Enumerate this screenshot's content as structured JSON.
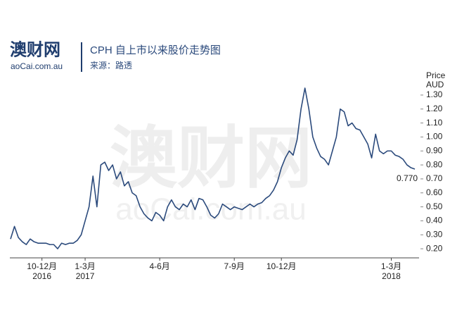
{
  "logo": {
    "name": "澳财网",
    "site": "aoCai.com.au"
  },
  "header": {
    "title": "CPH 自上市以来股价走势图",
    "source": "来源：路透"
  },
  "chart_data": {
    "type": "line",
    "watermark": {
      "name": "澳财网",
      "site": "aoCai.com.au"
    },
    "y_axis_label": [
      "Price",
      "AUD"
    ],
    "series": [
      {
        "name": "CPH",
        "color": "#2b4a7c",
        "values": [
          0.27,
          0.36,
          0.28,
          0.25,
          0.23,
          0.27,
          0.25,
          0.24,
          0.24,
          0.24,
          0.23,
          0.23,
          0.2,
          0.24,
          0.23,
          0.24,
          0.24,
          0.26,
          0.3,
          0.4,
          0.5,
          0.72,
          0.5,
          0.8,
          0.82,
          0.76,
          0.8,
          0.7,
          0.75,
          0.65,
          0.68,
          0.6,
          0.58,
          0.5,
          0.45,
          0.42,
          0.4,
          0.46,
          0.44,
          0.4,
          0.5,
          0.55,
          0.5,
          0.48,
          0.52,
          0.5,
          0.55,
          0.48,
          0.56,
          0.55,
          0.5,
          0.44,
          0.42,
          0.45,
          0.52,
          0.5,
          0.48,
          0.5,
          0.49,
          0.48,
          0.5,
          0.52,
          0.5,
          0.52,
          0.53,
          0.56,
          0.58,
          0.62,
          0.68,
          0.78,
          0.85,
          0.9,
          0.87,
          0.98,
          1.2,
          1.35,
          1.2,
          1.0,
          0.92,
          0.86,
          0.84,
          0.8,
          0.9,
          1.0,
          1.2,
          1.18,
          1.08,
          1.1,
          1.06,
          1.05,
          1.0,
          0.95,
          0.85,
          1.02,
          0.9,
          0.88,
          0.9,
          0.9,
          0.87,
          0.86,
          0.84,
          0.8,
          0.78,
          0.77
        ],
        "value_labels": [
          null,
          null,
          null,
          null,
          null,
          null,
          null,
          null,
          null,
          null,
          null,
          null,
          null,
          null,
          null,
          null,
          null,
          null,
          null,
          null,
          null,
          null,
          null,
          null,
          null,
          null,
          null,
          null,
          null,
          null,
          null,
          null,
          null,
          null,
          null,
          null,
          null,
          null,
          null,
          null,
          null,
          null,
          null,
          null,
          null,
          null,
          null,
          null,
          null,
          null,
          null,
          null,
          null,
          null,
          null,
          null,
          null,
          null,
          null,
          null,
          null,
          null,
          null,
          null,
          null,
          null,
          null,
          null,
          null,
          null,
          null,
          null,
          null,
          null,
          null,
          null,
          null,
          null,
          null,
          null,
          null,
          null,
          null,
          null,
          null,
          null,
          null,
          null,
          null,
          null,
          null,
          null,
          null,
          null,
          null,
          null,
          null,
          null,
          null,
          null,
          null,
          null,
          null,
          "0.770"
        ]
      }
    ],
    "xlim": [
      0,
      103
    ],
    "xticks": [
      {
        "value": 8,
        "label": "10-12月"
      },
      {
        "value": 19,
        "label": "1-3月"
      },
      {
        "value": 38,
        "label": "4-6月"
      },
      {
        "value": 57,
        "label": "7-9月"
      },
      {
        "value": 69,
        "label": "10-12月"
      },
      {
        "value": 97,
        "label": "1-3月"
      }
    ],
    "x_year_labels": [
      {
        "value": 8,
        "label": "2016"
      },
      {
        "value": 19,
        "label": "2017"
      },
      {
        "value": 97,
        "label": "2018"
      }
    ],
    "ylim": [
      0.15,
      1.35
    ],
    "yticks": [
      {
        "value": 0.2,
        "label": "0.20"
      },
      {
        "value": 0.3,
        "label": "0.30"
      },
      {
        "value": 0.4,
        "label": "0.40"
      },
      {
        "value": 0.5,
        "label": "0.50"
      },
      {
        "value": 0.6,
        "label": "0.60"
      },
      {
        "value": 0.7,
        "label": "0.70"
      },
      {
        "value": 0.8,
        "label": "0.80"
      },
      {
        "value": 0.9,
        "label": "0.90"
      },
      {
        "value": 1.0,
        "label": "1.00"
      },
      {
        "value": 1.1,
        "label": "1.10"
      },
      {
        "value": 1.2,
        "label": "1.20"
      },
      {
        "value": 1.3,
        "label": "1.30"
      }
    ]
  }
}
